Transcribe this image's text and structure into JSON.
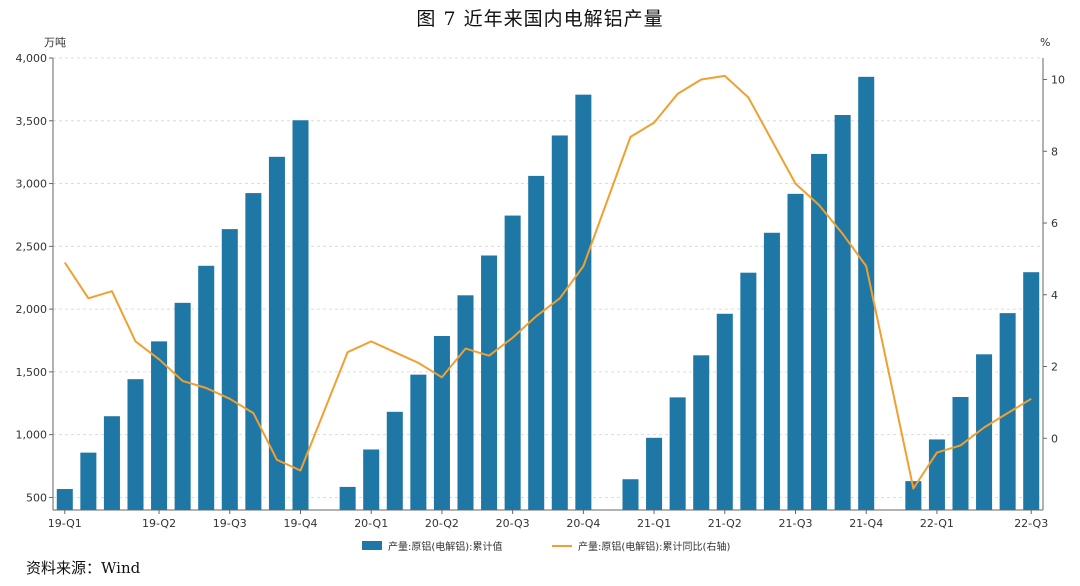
{
  "figure": {
    "title": "图 7   近年来国内电解铝产量",
    "source": "资料来源：Wind"
  },
  "chart_data": {
    "type": "bar",
    "left_unit": "万吨",
    "right_unit": "%",
    "y_left_lim": [
      400,
      4000
    ],
    "y_left_ticks": [
      "4,000",
      "3,500",
      "3,000",
      "2,500",
      "2,000",
      "1,500",
      "1,000",
      "500"
    ],
    "y_left_tick_values": [
      4000,
      3500,
      3000,
      2500,
      2000,
      1500,
      1000,
      500
    ],
    "y_right_lim": [
      -2.0,
      10.6
    ],
    "y_right_ticks": [
      "10",
      "8",
      "6",
      "4",
      "2",
      "0"
    ],
    "y_right_tick_values": [
      10,
      8,
      6,
      4,
      2,
      0
    ],
    "x_tick_labels": [
      {
        "label": "19-Q1",
        "index": 0
      },
      {
        "label": "19-Q2",
        "index": 4
      },
      {
        "label": "19-Q3",
        "index": 7
      },
      {
        "label": "19-Q4",
        "index": 10
      },
      {
        "label": "20-Q1",
        "index": 13
      },
      {
        "label": "20-Q2",
        "index": 16
      },
      {
        "label": "20-Q3",
        "index": 19
      },
      {
        "label": "20-Q4",
        "index": 22
      },
      {
        "label": "21-Q1",
        "index": 25
      },
      {
        "label": "21-Q2",
        "index": 28
      },
      {
        "label": "21-Q3",
        "index": 31
      },
      {
        "label": "21-Q4",
        "index": 34
      },
      {
        "label": "22-Q1",
        "index": 37
      },
      {
        "label": "22-Q3",
        "index": 41
      }
    ],
    "series": [
      {
        "name": "产量:原铝(电解铝):累计值",
        "type": "bar",
        "axis": "left",
        "color": "#1f77a6",
        "values": [
          567,
          857,
          1147,
          1442,
          1743,
          2050,
          2345,
          2637,
          2924,
          3213,
          3504,
          null,
          584,
          882,
          1182,
          1478,
          1786,
          2110,
          2427,
          2745,
          3061,
          3383,
          3708,
          null,
          645,
          975,
          1297,
          1632,
          1963,
          2290,
          2608,
          2918,
          3236,
          3546,
          3850,
          null,
          630,
          962,
          1300,
          1640,
          1968,
          2294
        ]
      },
      {
        "name": "产量:原铝(电解铝):累计同比(右轴)",
        "type": "line",
        "axis": "right",
        "color": "#f0a030",
        "values": [
          4.9,
          3.9,
          4.1,
          2.7,
          2.2,
          1.6,
          1.4,
          1.1,
          0.7,
          -0.6,
          -0.9,
          null,
          2.4,
          2.7,
          2.4,
          2.1,
          1.7,
          2.5,
          2.3,
          2.8,
          3.4,
          3.9,
          4.8,
          null,
          8.4,
          8.8,
          9.6,
          10.0,
          10.1,
          9.5,
          8.3,
          7.1,
          6.5,
          5.7,
          4.8,
          null,
          -1.4,
          -0.4,
          -0.2,
          0.3,
          0.7,
          1.1
        ]
      }
    ]
  }
}
